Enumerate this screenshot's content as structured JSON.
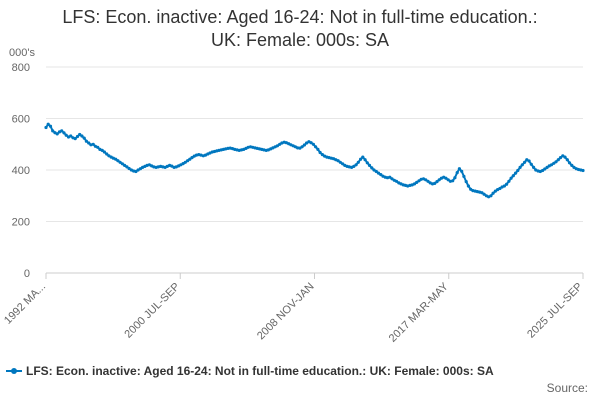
{
  "colors": {
    "series": "#0077bf",
    "grid": "#e6e6e6",
    "axis_text": "#666666",
    "title_text": "#333333"
  },
  "chart_data": {
    "type": "line",
    "title_line1": "LFS: Econ. inactive: Aged 16-24: Not in full-time education.:",
    "title_line2": "UK: Female: 000s: SA",
    "ylabel": "000's",
    "ylim": [
      0,
      800
    ],
    "yticks": [
      "0",
      "200",
      "400",
      "600",
      "800"
    ],
    "x_tick_labels": [
      "1992 MA...",
      "2000 JUL-SEP",
      "2008 NOV-JAN",
      "2017 MAR-MAY",
      "2025 JUL-SEP"
    ],
    "x_start": "1992 MAR-MAY",
    "x_end": "2025 JUL-SEP",
    "grid": true,
    "legend_position": "bottom",
    "series": [
      {
        "name": "LFS: Econ. inactive: Aged 16-24: Not in full-time education.: UK: Female: 000s: SA",
        "values": [
          565,
          578,
          570,
          552,
          545,
          540,
          548,
          552,
          544,
          535,
          528,
          532,
          525,
          522,
          530,
          538,
          532,
          524,
          512,
          505,
          498,
          500,
          492,
          488,
          480,
          476,
          470,
          462,
          455,
          450,
          446,
          442,
          436,
          430,
          424,
          418,
          412,
          406,
          400,
          396,
          394,
          400,
          405,
          410,
          414,
          418,
          420,
          416,
          412,
          410,
          412,
          414,
          412,
          410,
          414,
          418,
          415,
          410,
          412,
          416,
          420,
          425,
          430,
          436,
          442,
          448,
          454,
          458,
          460,
          458,
          455,
          458,
          462,
          466,
          470,
          472,
          474,
          476,
          478,
          480,
          482,
          484,
          485,
          483,
          480,
          478,
          476,
          478,
          480,
          484,
          488,
          490,
          488,
          486,
          484,
          482,
          480,
          478,
          476,
          478,
          482,
          486,
          490,
          494,
          500,
          505,
          508,
          506,
          502,
          498,
          494,
          490,
          486,
          485,
          490,
          497,
          505,
          510,
          506,
          500,
          490,
          480,
          468,
          460,
          454,
          450,
          448,
          446,
          444,
          440,
          436,
          430,
          424,
          418,
          414,
          412,
          410,
          414,
          420,
          430,
          442,
          450,
          440,
          428,
          418,
          408,
          400,
          394,
          388,
          382,
          376,
          372,
          370,
          372,
          366,
          360,
          356,
          350,
          346,
          342,
          340,
          338,
          340,
          342,
          346,
          352,
          358,
          364,
          366,
          362,
          356,
          350,
          346,
          348,
          355,
          362,
          368,
          372,
          368,
          362,
          356,
          358,
          370,
          390,
          405,
          395,
          375,
          355,
          338,
          325,
          320,
          318,
          316,
          314,
          312,
          306,
          300,
          296,
          300,
          310,
          318,
          324,
          328,
          334,
          338,
          345,
          356,
          368,
          378,
          388,
          398,
          410,
          420,
          430,
          440,
          435,
          422,
          410,
          400,
          396,
          394,
          398,
          404,
          410,
          416,
          420,
          426,
          432,
          440,
          448,
          455,
          450,
          440,
          428,
          418,
          410,
          405,
          402,
          400,
          398
        ]
      }
    ]
  },
  "legend": {
    "label": "LFS: Econ. inactive: Aged 16-24: Not in full-time education.: UK: Female: 000s: SA"
  },
  "source": {
    "label": "Source:"
  }
}
